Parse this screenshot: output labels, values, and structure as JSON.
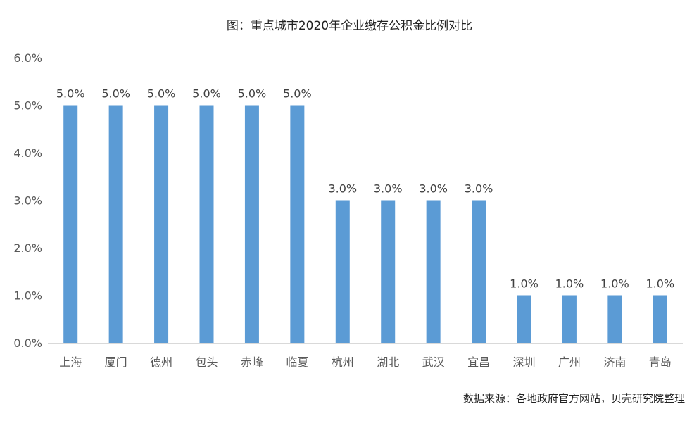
{
  "chart_data": {
    "type": "bar",
    "title": "图：重点城市2020年企业缴存公积金比例对比",
    "categories": [
      "上海",
      "厦门",
      "德州",
      "包头",
      "赤峰",
      "临夏",
      "杭州",
      "湖北",
      "武汉",
      "宜昌",
      "深圳",
      "广州",
      "济南",
      "青岛"
    ],
    "series": [
      {
        "values": [
          5.0,
          5.0,
          5.0,
          5.0,
          5.0,
          5.0,
          3.0,
          3.0,
          3.0,
          3.0,
          1.0,
          1.0,
          1.0,
          1.0
        ]
      }
    ],
    "data_labels": [
      "5.0%",
      "5.0%",
      "5.0%",
      "5.0%",
      "5.0%",
      "5.0%",
      "3.0%",
      "3.0%",
      "3.0%",
      "3.0%",
      "1.0%",
      "1.0%",
      "1.0%",
      "1.0%"
    ],
    "yticks": [
      "0.0%",
      "1.0%",
      "2.0%",
      "3.0%",
      "4.0%",
      "5.0%",
      "6.0%"
    ],
    "ylim": [
      0,
      6
    ],
    "xlabel": "",
    "ylabel": "",
    "grid": false,
    "legend": "none",
    "bar_color": "#5B9BD5",
    "axis_color": "#D9D9D9"
  },
  "source_note": "数据来源：各地政府官方网站，贝壳研究院整理"
}
